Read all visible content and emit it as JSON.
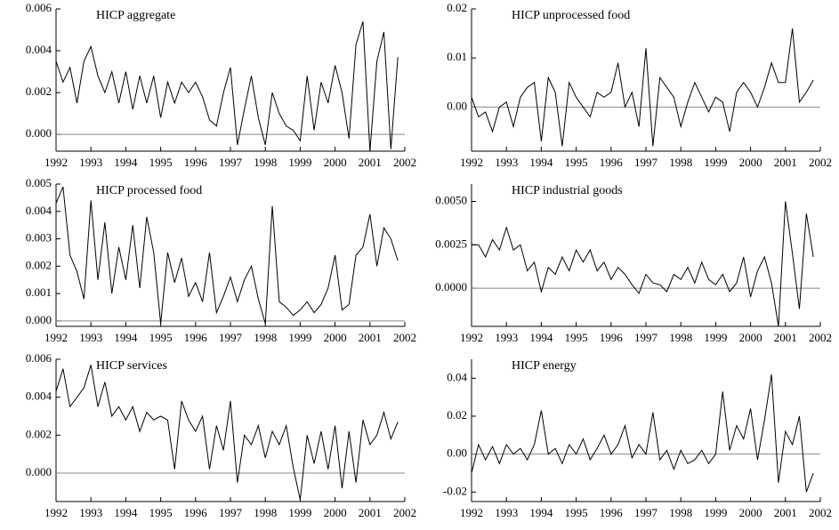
{
  "chart_data": [
    {
      "type": "line",
      "title": "HICP aggregate",
      "color": "#000000",
      "zero_line": true,
      "x": [
        1992,
        1992.2,
        1992.4,
        1992.6,
        1992.8,
        1993,
        1993.2,
        1993.4,
        1993.6,
        1993.8,
        1994,
        1994.2,
        1994.4,
        1994.6,
        1994.8,
        1995,
        1995.2,
        1995.4,
        1995.6,
        1995.8,
        1996,
        1996.2,
        1996.4,
        1996.6,
        1996.8,
        1997,
        1997.2,
        1997.4,
        1997.6,
        1997.8,
        1998,
        1998.2,
        1998.4,
        1998.6,
        1998.8,
        1999,
        1999.2,
        1999.4,
        1999.6,
        1999.8,
        2000,
        2000.2,
        2000.4,
        2000.6,
        2000.8,
        2001,
        2001.2,
        2001.4,
        2001.6,
        2001.8
      ],
      "values": [
        0.0035,
        0.0025,
        0.0032,
        0.0015,
        0.0035,
        0.0042,
        0.0028,
        0.002,
        0.003,
        0.0015,
        0.003,
        0.0012,
        0.0028,
        0.0015,
        0.0028,
        0.0008,
        0.0025,
        0.0015,
        0.0025,
        0.002,
        0.0025,
        0.0018,
        0.0007,
        0.0004,
        0.002,
        0.0032,
        -0.0005,
        0.0012,
        0.0028,
        0.0008,
        -0.0005,
        0.002,
        0.001,
        0.0004,
        0.0002,
        -0.0003,
        0.0028,
        0.0002,
        0.0025,
        0.0015,
        0.0033,
        0.002,
        -0.0002,
        0.0043,
        0.0054,
        -0.0008,
        0.0035,
        0.0049,
        -0.0007,
        0.0037
      ],
      "xlim": [
        1992,
        2002
      ],
      "xticks": [
        1992,
        1993,
        1994,
        1995,
        1996,
        1997,
        1998,
        1999,
        2000,
        2001,
        2002
      ],
      "ylim": [
        -0.0008,
        0.006
      ],
      "yticks": [
        {
          "value": 0,
          "label": "0.000"
        },
        {
          "value": 0.002,
          "label": "0.002"
        },
        {
          "value": 0.004,
          "label": "0.004"
        },
        {
          "value": 0.006,
          "label": "0.006"
        }
      ]
    },
    {
      "type": "line",
      "title": "HICP unprocessed food",
      "color": "#000000",
      "zero_line": true,
      "x": [
        1992,
        1992.2,
        1992.4,
        1992.6,
        1992.8,
        1993,
        1993.2,
        1993.4,
        1993.6,
        1993.8,
        1994,
        1994.2,
        1994.4,
        1994.6,
        1994.8,
        1995,
        1995.2,
        1995.4,
        1995.6,
        1995.8,
        1996,
        1996.2,
        1996.4,
        1996.6,
        1996.8,
        1997,
        1997.2,
        1997.4,
        1997.6,
        1997.8,
        1998,
        1998.2,
        1998.4,
        1998.6,
        1998.8,
        1999,
        1999.2,
        1999.4,
        1999.6,
        1999.8,
        2000,
        2000.2,
        2000.4,
        2000.6,
        2000.8,
        2001,
        2001.2,
        2001.4,
        2001.6,
        2001.8
      ],
      "values": [
        0.002,
        -0.002,
        -0.001,
        -0.005,
        0.0,
        0.001,
        -0.004,
        0.002,
        0.004,
        0.005,
        -0.007,
        0.006,
        0.003,
        -0.008,
        0.005,
        0.002,
        0.0,
        -0.002,
        0.003,
        0.002,
        0.003,
        0.009,
        0.0,
        0.003,
        -0.004,
        0.012,
        -0.008,
        0.006,
        0.004,
        0.002,
        -0.004,
        0.001,
        0.005,
        0.002,
        -0.001,
        0.002,
        0.001,
        -0.005,
        0.003,
        0.005,
        0.003,
        0.0,
        0.004,
        0.009,
        0.005,
        0.005,
        0.016,
        0.001,
        0.003,
        0.0055
      ],
      "xlim": [
        1992,
        2002
      ],
      "xticks": [
        1992,
        1993,
        1994,
        1995,
        1996,
        1997,
        1998,
        1999,
        2000,
        2001,
        2002
      ],
      "ylim": [
        -0.009,
        0.02
      ],
      "yticks": [
        {
          "value": 0,
          "label": "0.00"
        },
        {
          "value": 0.01,
          "label": "0.01"
        },
        {
          "value": 0.02,
          "label": "0.02"
        }
      ]
    },
    {
      "type": "line",
      "title": "HICP processed food",
      "color": "#000000",
      "zero_line": true,
      "x": [
        1992,
        1992.2,
        1992.4,
        1992.6,
        1992.8,
        1993,
        1993.2,
        1993.4,
        1993.6,
        1993.8,
        1994,
        1994.2,
        1994.4,
        1994.6,
        1994.8,
        1995,
        1995.2,
        1995.4,
        1995.6,
        1995.8,
        1996,
        1996.2,
        1996.4,
        1996.6,
        1996.8,
        1997,
        1997.2,
        1997.4,
        1997.6,
        1997.8,
        1998,
        1998.2,
        1998.4,
        1998.6,
        1998.8,
        1999,
        1999.2,
        1999.4,
        1999.6,
        1999.8,
        2000,
        2000.2,
        2000.4,
        2000.6,
        2000.8,
        2001,
        2001.2,
        2001.4,
        2001.6,
        2001.8
      ],
      "values": [
        0.0043,
        0.0049,
        0.0024,
        0.0018,
        0.0008,
        0.0044,
        0.0015,
        0.0036,
        0.001,
        0.0027,
        0.0015,
        0.0035,
        0.0012,
        0.0038,
        0.0025,
        -0.0001,
        0.0025,
        0.0014,
        0.0023,
        0.0009,
        0.0014,
        0.0007,
        0.0025,
        0.0003,
        0.0009,
        0.0016,
        0.0007,
        0.0015,
        0.002,
        0.0008,
        -0.0001,
        0.0042,
        0.0007,
        0.0005,
        0.0002,
        0.0004,
        0.0007,
        0.0003,
        0.0006,
        0.0012,
        0.0024,
        0.0004,
        0.0006,
        0.0024,
        0.0027,
        0.0039,
        0.002,
        0.0034,
        0.003,
        0.0022
      ],
      "xlim": [
        1992,
        2002
      ],
      "xticks": [
        1992,
        1993,
        1994,
        1995,
        1996,
        1997,
        1998,
        1999,
        2000,
        2001,
        2002
      ],
      "ylim": [
        -0.0002,
        0.005
      ],
      "yticks": [
        {
          "value": 0,
          "label": "0.000"
        },
        {
          "value": 0.001,
          "label": "0.001"
        },
        {
          "value": 0.002,
          "label": "0.002"
        },
        {
          "value": 0.003,
          "label": "0.003"
        },
        {
          "value": 0.004,
          "label": "0.004"
        },
        {
          "value": 0.005,
          "label": "0.005"
        }
      ]
    },
    {
      "type": "line",
      "title": "HICP industrial goods",
      "color": "#000000",
      "zero_line": true,
      "x": [
        1992,
        1992.2,
        1992.4,
        1992.6,
        1992.8,
        1993,
        1993.2,
        1993.4,
        1993.6,
        1993.8,
        1994,
        1994.2,
        1994.4,
        1994.6,
        1994.8,
        1995,
        1995.2,
        1995.4,
        1995.6,
        1995.8,
        1996,
        1996.2,
        1996.4,
        1996.6,
        1996.8,
        1997,
        1997.2,
        1997.4,
        1997.6,
        1997.8,
        1998,
        1998.2,
        1998.4,
        1998.6,
        1998.8,
        1999,
        1999.2,
        1999.4,
        1999.6,
        1999.8,
        2000,
        2000.2,
        2000.4,
        2000.6,
        2000.8,
        2001,
        2001.2,
        2001.4,
        2001.6,
        2001.8
      ],
      "values": [
        0.0025,
        0.0025,
        0.0018,
        0.0028,
        0.0022,
        0.0035,
        0.0022,
        0.0025,
        0.001,
        0.0015,
        -0.0002,
        0.0012,
        0.0008,
        0.0018,
        0.001,
        0.0022,
        0.0015,
        0.0022,
        0.001,
        0.0015,
        0.0005,
        0.0012,
        0.0008,
        0.0002,
        -0.0003,
        0.0008,
        0.0003,
        0.0002,
        -0.0002,
        0.0008,
        0.0005,
        0.0012,
        0.0003,
        0.0015,
        0.0005,
        0.0002,
        0.0008,
        -0.0002,
        0.0003,
        0.0018,
        -0.0005,
        0.001,
        0.0018,
        0.0003,
        -0.0022,
        0.005,
        0.002,
        -0.0012,
        0.0043,
        0.0018
      ],
      "xlim": [
        1992,
        2002
      ],
      "xticks": [
        1992,
        1993,
        1994,
        1995,
        1996,
        1997,
        1998,
        1999,
        2000,
        2001,
        2002
      ],
      "ylim": [
        -0.0022,
        0.006
      ],
      "yticks": [
        {
          "value": 0,
          "label": "0.0000"
        },
        {
          "value": 0.0025,
          "label": "0.0025"
        },
        {
          "value": 0.005,
          "label": "0.0050"
        }
      ]
    },
    {
      "type": "line",
      "title": "HICP services",
      "color": "#000000",
      "zero_line": true,
      "x": [
        1992,
        1992.2,
        1992.4,
        1992.6,
        1992.8,
        1993,
        1993.2,
        1993.4,
        1993.6,
        1993.8,
        1994,
        1994.2,
        1994.4,
        1994.6,
        1994.8,
        1995,
        1995.2,
        1995.4,
        1995.6,
        1995.8,
        1996,
        1996.2,
        1996.4,
        1996.6,
        1996.8,
        1997,
        1997.2,
        1997.4,
        1997.6,
        1997.8,
        1998,
        1998.2,
        1998.4,
        1998.6,
        1998.8,
        1999,
        1999.2,
        1999.4,
        1999.6,
        1999.8,
        2000,
        2000.2,
        2000.4,
        2000.6,
        2000.8,
        2001,
        2001.2,
        2001.4,
        2001.6,
        2001.8
      ],
      "values": [
        0.0043,
        0.0055,
        0.0035,
        0.004,
        0.0045,
        0.0057,
        0.0035,
        0.0048,
        0.003,
        0.0035,
        0.0028,
        0.0035,
        0.0022,
        0.0032,
        0.0028,
        0.003,
        0.0028,
        0.0002,
        0.0038,
        0.0028,
        0.0022,
        0.003,
        0.0002,
        0.0025,
        0.0012,
        0.0038,
        -0.0005,
        0.002,
        0.0015,
        0.0025,
        0.0008,
        0.0022,
        0.0015,
        0.0025,
        0.0003,
        -0.0014,
        0.002,
        0.0005,
        0.0022,
        0.0002,
        0.0025,
        -0.0008,
        0.0022,
        -0.0005,
        0.0028,
        0.0015,
        0.002,
        0.0032,
        0.0018,
        0.0027
      ],
      "xlim": [
        1992,
        2002
      ],
      "xticks": [
        1992,
        1993,
        1994,
        1995,
        1996,
        1997,
        1998,
        1999,
        2000,
        2001,
        2002
      ],
      "ylim": [
        -0.0015,
        0.006
      ],
      "yticks": [
        {
          "value": 0,
          "label": "0.000"
        },
        {
          "value": 0.002,
          "label": "0.002"
        },
        {
          "value": 0.004,
          "label": "0.004"
        },
        {
          "value": 0.006,
          "label": "0.006"
        }
      ]
    },
    {
      "type": "line",
      "title": "HICP energy",
      "color": "#000000",
      "zero_line": true,
      "x": [
        1992,
        1992.2,
        1992.4,
        1992.6,
        1992.8,
        1993,
        1993.2,
        1993.4,
        1993.6,
        1993.8,
        1994,
        1994.2,
        1994.4,
        1994.6,
        1994.8,
        1995,
        1995.2,
        1995.4,
        1995.6,
        1995.8,
        1996,
        1996.2,
        1996.4,
        1996.6,
        1996.8,
        1997,
        1997.2,
        1997.4,
        1997.6,
        1997.8,
        1998,
        1998.2,
        1998.4,
        1998.6,
        1998.8,
        1999,
        1999.2,
        1999.4,
        1999.6,
        1999.8,
        2000,
        2000.2,
        2000.4,
        2000.6,
        2000.8,
        2001,
        2001.2,
        2001.4,
        2001.6,
        2001.8
      ],
      "values": [
        -0.01,
        0.005,
        -0.003,
        0.004,
        -0.005,
        0.005,
        0.0,
        0.003,
        -0.003,
        0.005,
        0.023,
        0.0,
        0.003,
        -0.005,
        0.005,
        0.0,
        0.008,
        -0.003,
        0.003,
        0.01,
        0.0,
        0.005,
        0.015,
        -0.002,
        0.005,
        0.0,
        0.022,
        -0.003,
        0.002,
        -0.008,
        0.002,
        -0.005,
        -0.003,
        0.002,
        -0.005,
        0.0,
        0.033,
        0.002,
        0.015,
        0.008,
        0.024,
        -0.003,
        0.018,
        0.042,
        -0.015,
        0.012,
        0.005,
        0.02,
        -0.02,
        -0.01
      ],
      "xlim": [
        1992,
        2002
      ],
      "xticks": [
        1992,
        1993,
        1994,
        1995,
        1996,
        1997,
        1998,
        1999,
        2000,
        2001,
        2002
      ],
      "ylim": [
        -0.025,
        0.05
      ],
      "yticks": [
        {
          "value": -0.02,
          "label": "-0.02"
        },
        {
          "value": 0,
          "label": "0.00"
        },
        {
          "value": 0.02,
          "label": "0.02"
        },
        {
          "value": 0.04,
          "label": "0.04"
        }
      ]
    }
  ]
}
